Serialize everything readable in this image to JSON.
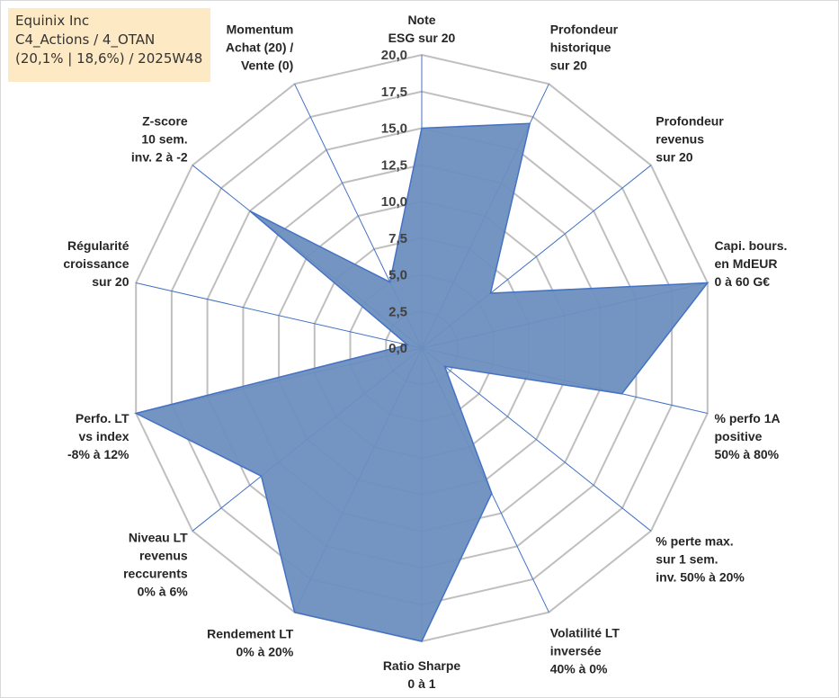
{
  "info": {
    "line1": "Equinix Inc",
    "line2": "C4_Actions / 4_OTAN",
    "line3": "(20,1% | 18,6%) / 2025W48"
  },
  "colors": {
    "fill": "#6d8fbf",
    "stroke": "#4472c4",
    "grid": "#bfbfbf",
    "spoke": "#4472c4"
  },
  "chart_data": {
    "type": "radar",
    "title": "",
    "rmin": 0,
    "rmax": 20,
    "tick_step": 2.5,
    "ticks": [
      "0,0",
      "2,5",
      "5,0",
      "7,5",
      "10,0",
      "12,5",
      "15,0",
      "17,5",
      "20,0"
    ],
    "axes": [
      {
        "label": [
          "Note",
          "ESG sur 20"
        ],
        "value": 15
      },
      {
        "label": [
          "Profondeur",
          "historique",
          "sur 20"
        ],
        "value": 17
      },
      {
        "label": [
          "Profondeur",
          "revenus",
          "sur 20"
        ],
        "value": 6
      },
      {
        "label": [
          "Capi. bours.",
          "en MdEUR",
          "0 à 60 G€"
        ],
        "value": 20
      },
      {
        "label": [
          "% perfo 1A",
          "positive",
          "50% à 80%"
        ],
        "value": 14
      },
      {
        "label": [
          "% perte max.",
          "sur 1 sem.",
          "inv. 50% à 20%"
        ],
        "value": 2
      },
      {
        "label": [
          "Volatilité LT",
          "inversée",
          "40% à 0%"
        ],
        "value": 11
      },
      {
        "label": [
          "Ratio Sharpe",
          "0 à 1"
        ],
        "value": 20
      },
      {
        "label": [
          "Rendement LT",
          "0% à 20%"
        ],
        "value": 20
      },
      {
        "label": [
          "Niveau LT",
          "revenus",
          "reccurents",
          "0% à 6%"
        ],
        "value": 14
      },
      {
        "label": [
          "Perfo. LT",
          "vs index",
          "-8% à 12%"
        ],
        "value": 20
      },
      {
        "label": [
          "Régularité",
          "croissance",
          "sur 20"
        ],
        "value": 1
      },
      {
        "label": [
          "Z-score",
          "10 sem.",
          "inv. 2 à -2"
        ],
        "value": 15
      },
      {
        "label": [
          "Momentum",
          "Achat (20) /",
          "Vente (0)"
        ],
        "value": 5
      }
    ]
  }
}
